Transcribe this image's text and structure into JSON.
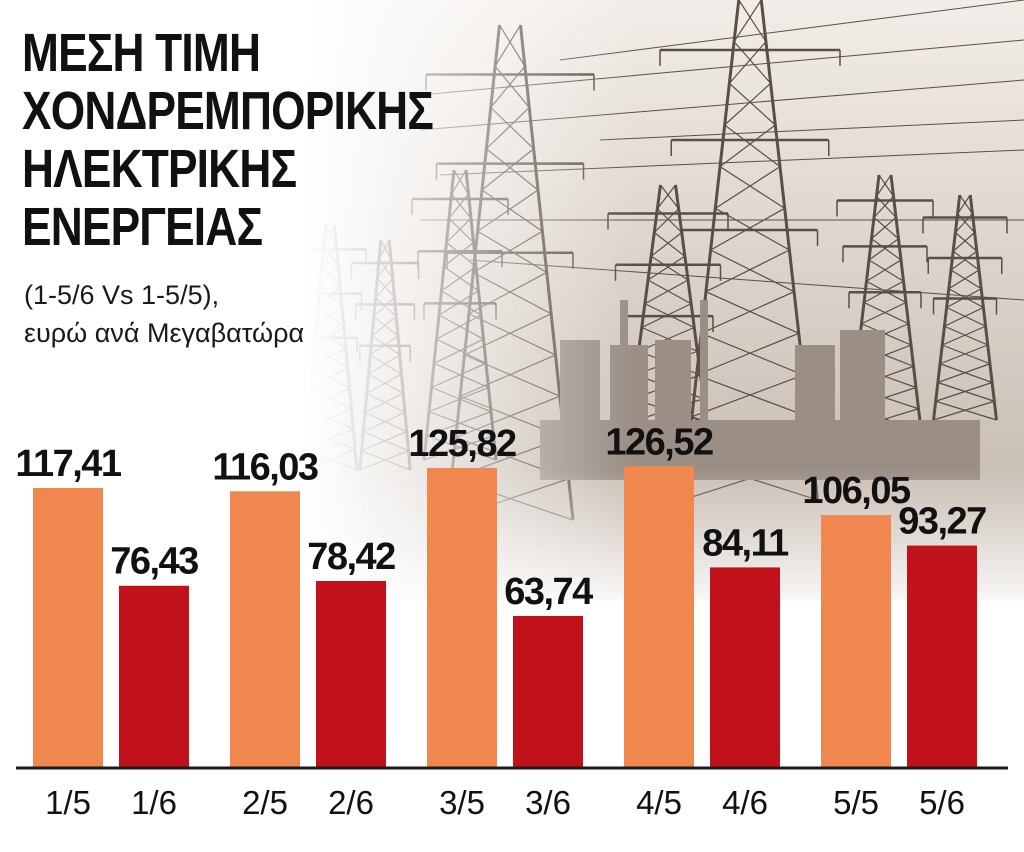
{
  "header": {
    "title_lines": [
      "ΜΕΣΗ ΤΙΜΗ",
      "ΧΟΝΔΡΕΜΠΟΡΙΚΗΣ",
      "ΗΛΕΚΤΡΙΚΗΣ",
      "ΕΝΕΡΓΕΙΑΣ"
    ],
    "subtitle_lines": [
      "(1-5/6 Vs 1-5/5),",
      "ευρώ ανά Μεγαβατώρα"
    ]
  },
  "colors": {
    "may": "#f0874f",
    "june": "#c1121c",
    "axis": "#1a1a1a",
    "text": "#111111"
  },
  "chart_data": {
    "type": "bar",
    "title": "ΜΕΣΗ ΤΙΜΗ ΧΟΝΔΡΕΜΠΟΡΙΚΗΣ ΗΛΕΚΤΡΙΚΗΣ ΕΝΕΡΓΕΙΑΣ",
    "subtitle": "(1-5/6 Vs 1-5/5), ευρώ ανά Μεγαβατώρα",
    "categories": [
      "1/5",
      "1/6",
      "2/5",
      "2/6",
      "3/5",
      "3/6",
      "4/5",
      "4/6",
      "5/5",
      "5/6"
    ],
    "value_labels": [
      "117,41",
      "76,43",
      "116,03",
      "78,42",
      "125,82",
      "63,74",
      "126,52",
      "84,11",
      "106,05",
      "93,27"
    ],
    "values": [
      117.41,
      76.43,
      116.03,
      78.42,
      125.82,
      63.74,
      126.52,
      84.11,
      106.05,
      93.27
    ],
    "series_colors": [
      "may",
      "june",
      "may",
      "june",
      "may",
      "june",
      "may",
      "june",
      "may",
      "june"
    ],
    "ylim": [
      0,
      140
    ],
    "grid": false,
    "legend": "none"
  }
}
